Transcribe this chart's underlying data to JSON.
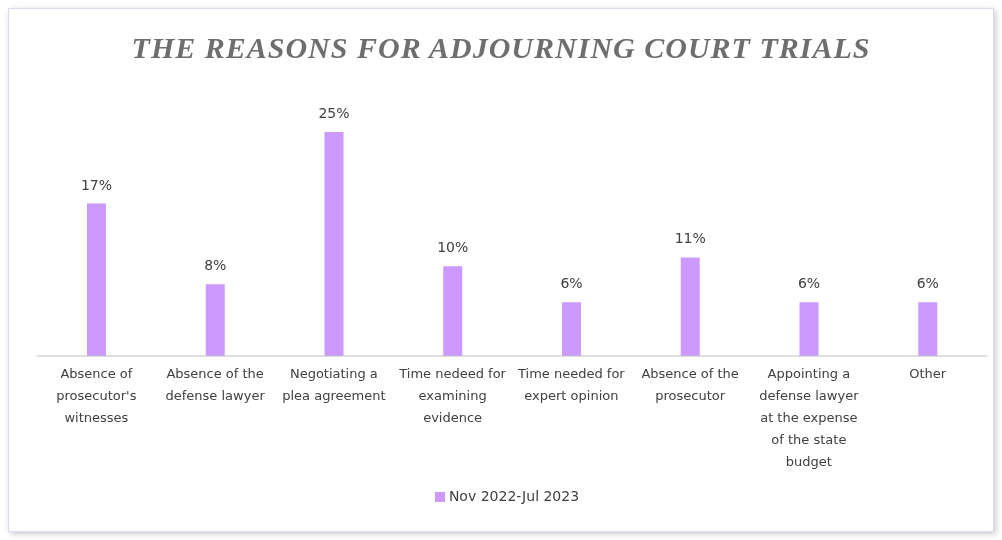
{
  "chart_data": {
    "type": "bar",
    "title": "THE REASONS FOR ADJOURNING COURT TRIALS",
    "categories": [
      "Absence of prosecutor's witnesses",
      "Absence of the defense lawyer",
      "Negotiating a plea agreement",
      "Time nedeed for examining evidence",
      "Time needed for expert opinion",
      "Absence of the prosecutor",
      "Appointing a defense lawyer at the expense of the state budget",
      "Other"
    ],
    "series": [
      {
        "name": "Nov 2022-Jul 2023",
        "color": "#cc99ff",
        "values": [
          17,
          8,
          25,
          10,
          6,
          11,
          6,
          6
        ],
        "value_labels": [
          "17%",
          "8%",
          "25%",
          "10%",
          "6%",
          "11%",
          "6%",
          "6%"
        ]
      }
    ],
    "legend": "bottom"
  }
}
